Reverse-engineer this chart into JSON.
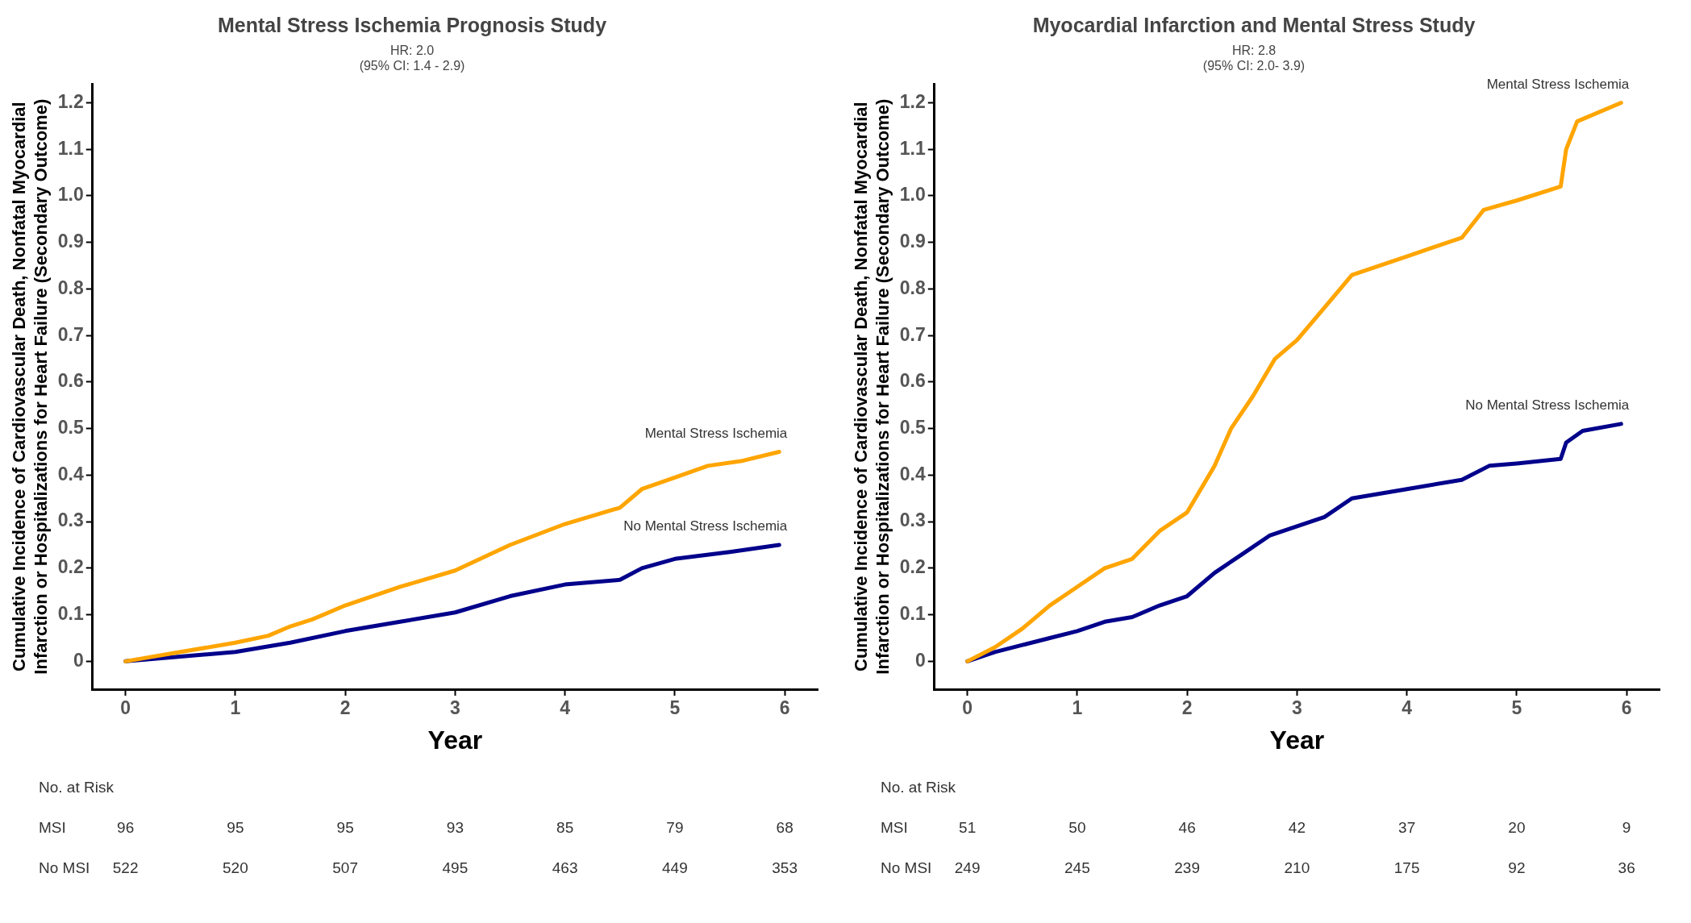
{
  "chart_data": [
    {
      "type": "line",
      "title": "Mental Stress Ischemia Prognosis Study",
      "subtitle": "HR: 2.0\n(95% CI: 1.4 - 2.9)",
      "xlabel": "Year",
      "ylabel": "Cumulative Incidence of Cardiovascular Death, Nonfatal Myocardial\nInfarction or Hospitalizations for Heart Failure (Secondary Outcome)",
      "xlim": [
        -0.3,
        6.3
      ],
      "xticks": [
        0,
        1,
        2,
        3,
        4,
        5,
        6
      ],
      "ylim": [
        -0.06,
        1.24
      ],
      "yticks": [
        0,
        0.1,
        0.2,
        0.3,
        0.4,
        0.5,
        0.6,
        0.7,
        0.8,
        0.9,
        {
          "value": 1,
          "label": "1.0"
        },
        1.1,
        1.2
      ],
      "grid": false,
      "legend": false,
      "marker": "none",
      "line_style": "solid",
      "series": [
        {
          "name": "Mental Stress Ischemia",
          "color": "#ffa500",
          "x": [
            0,
            0.5,
            1,
            1.3,
            1.5,
            1.7,
            2,
            2.5,
            3,
            3.5,
            4,
            4.5,
            4.7,
            5,
            5.3,
            5.6,
            5.95
          ],
          "values": [
            0,
            0.02,
            0.04,
            0.055,
            0.075,
            0.09,
            0.12,
            0.16,
            0.195,
            0.25,
            0.295,
            0.33,
            0.37,
            0.395,
            0.42,
            0.43,
            0.45
          ]
        },
        {
          "name": "No Mental Stress Ischemia",
          "color": "#00008b",
          "x": [
            0,
            0.5,
            1,
            1.5,
            2,
            2.5,
            3,
            3.5,
            4,
            4.5,
            4.7,
            5,
            5.5,
            5.95
          ],
          "values": [
            0,
            0.01,
            0.02,
            0.04,
            0.065,
            0.085,
            0.105,
            0.14,
            0.165,
            0.175,
            0.2,
            0.22,
            0.235,
            0.25
          ]
        }
      ],
      "annotations": [
        "No. at Risk",
        "MSI",
        "96",
        "95",
        "95",
        "93",
        "85",
        "79",
        "68",
        "No MSI",
        "522",
        "520",
        "507",
        "495",
        "463",
        "449",
        "353"
      ]
    },
    {
      "type": "line",
      "title": "Myocardial Infarction and Mental Stress Study",
      "subtitle": "HR: 2.8\n(95% CI: 2.0- 3.9)",
      "xlabel": "Year",
      "ylabel": "Cumulative Incidence of Cardiovascular Death, Nonfatal Myocardial\nInfarction or Hospitalizations for Heart Failure (Secondary Outcome)",
      "xlim": [
        -0.3,
        6.3
      ],
      "xticks": [
        0,
        1,
        2,
        3,
        4,
        5,
        6
      ],
      "ylim": [
        -0.06,
        1.24
      ],
      "yticks": [
        0,
        0.1,
        0.2,
        0.3,
        0.4,
        0.5,
        0.6,
        0.7,
        0.8,
        0.9,
        {
          "value": 1,
          "label": "1.0"
        },
        1.1,
        1.2
      ],
      "grid": false,
      "legend": false,
      "marker": "none",
      "line_style": "solid",
      "series": [
        {
          "name": "Mental Stress Ischemia",
          "color": "#ffa500",
          "x": [
            0,
            0.25,
            0.5,
            0.75,
            1,
            1.25,
            1.5,
            1.75,
            2,
            2.1,
            2.25,
            2.4,
            2.6,
            2.8,
            3,
            3.25,
            3.5,
            3.75,
            4,
            4.25,
            4.5,
            4.7,
            5,
            5.4,
            5.45,
            5.55,
            5.95
          ],
          "values": [
            0,
            0.03,
            0.07,
            0.12,
            0.16,
            0.2,
            0.22,
            0.28,
            0.32,
            0.36,
            0.42,
            0.5,
            0.57,
            0.65,
            0.69,
            0.76,
            0.83,
            0.85,
            0.87,
            0.89,
            0.91,
            0.97,
            0.99,
            1.02,
            1.1,
            1.16,
            1.2
          ]
        },
        {
          "name": "No Mental Stress Ischemia",
          "color": "#00008b",
          "x": [
            0,
            0.25,
            0.5,
            0.75,
            1,
            1.25,
            1.5,
            1.75,
            2,
            2.25,
            2.5,
            2.75,
            3,
            3.25,
            3.5,
            3.75,
            4,
            4.5,
            4.75,
            5,
            5.4,
            5.45,
            5.6,
            5.95
          ],
          "values": [
            0,
            0.02,
            0.035,
            0.05,
            0.065,
            0.085,
            0.095,
            0.12,
            0.14,
            0.19,
            0.23,
            0.27,
            0.29,
            0.31,
            0.35,
            0.36,
            0.37,
            0.39,
            0.42,
            0.425,
            0.435,
            0.47,
            0.495,
            0.51
          ]
        }
      ],
      "annotations": [
        "No. at Risk",
        "MSI",
        "51",
        "50",
        "46",
        "42",
        "37",
        "20",
        "9",
        "No MSI",
        "249",
        "245",
        "239",
        "210",
        "175",
        "92",
        "36"
      ]
    }
  ]
}
